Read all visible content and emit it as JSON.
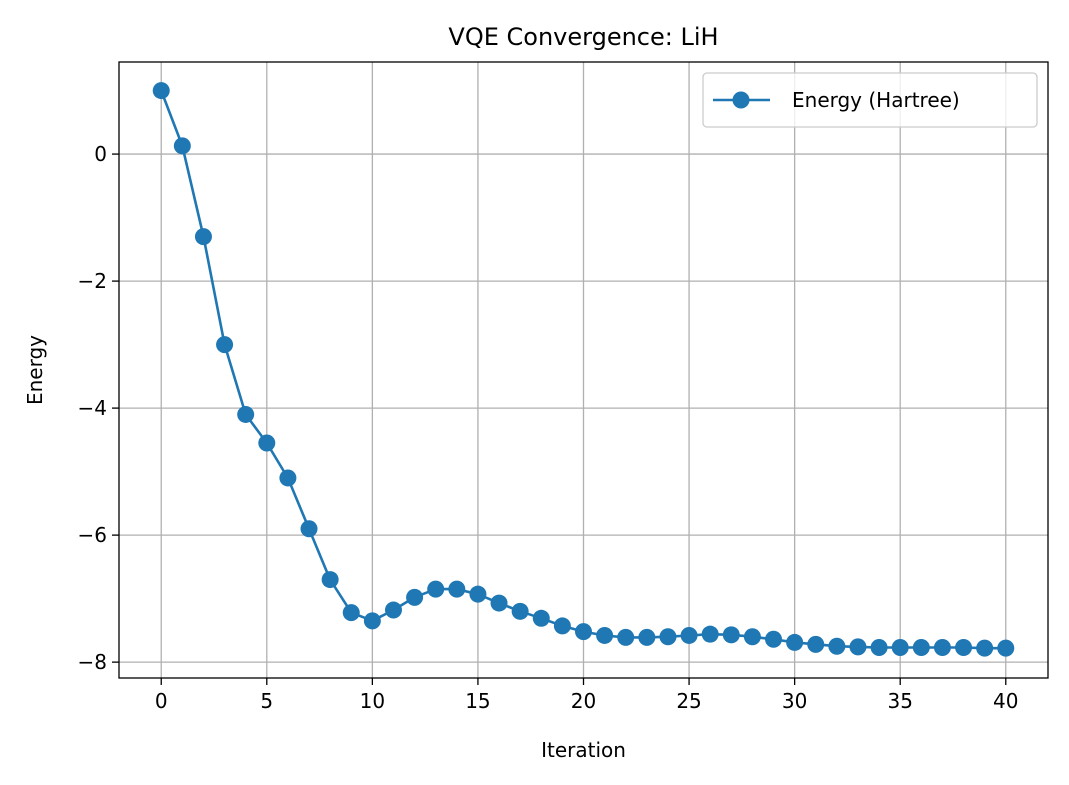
{
  "chart_data": {
    "type": "line",
    "title": "VQE Convergence: LiH",
    "xlabel": "Iteration",
    "ylabel": "Energy",
    "xlim": [
      -2,
      42
    ],
    "ylim": [
      -8.25,
      1.45
    ],
    "xticks": [
      0,
      5,
      10,
      15,
      20,
      25,
      30,
      35,
      40
    ],
    "yticks": [
      -8,
      -6,
      -4,
      -2,
      0
    ],
    "ytick_labels": [
      "−8",
      "−6",
      "−4",
      "−2",
      "0"
    ],
    "grid": true,
    "legend_position": "top-right",
    "series": [
      {
        "name": "Energy (Hartree)",
        "color": "#1f77b4",
        "marker": "circle",
        "x": [
          0,
          1,
          2,
          3,
          4,
          5,
          6,
          7,
          8,
          9,
          10,
          11,
          12,
          13,
          14,
          15,
          16,
          17,
          18,
          19,
          20,
          21,
          22,
          23,
          24,
          25,
          26,
          27,
          28,
          29,
          30,
          31,
          32,
          33,
          34,
          35,
          36,
          37,
          38,
          39,
          40
        ],
        "y": [
          1.0,
          0.13,
          -1.3,
          -3.0,
          -4.1,
          -4.55,
          -5.1,
          -5.9,
          -6.7,
          -7.22,
          -7.35,
          -7.18,
          -6.98,
          -6.85,
          -6.85,
          -6.93,
          -7.07,
          -7.2,
          -7.31,
          -7.43,
          -7.52,
          -7.58,
          -7.61,
          -7.61,
          -7.6,
          -7.58,
          -7.56,
          -7.57,
          -7.6,
          -7.64,
          -7.69,
          -7.72,
          -7.75,
          -7.76,
          -7.77,
          -7.77,
          -7.77,
          -7.77,
          -7.77,
          -7.78,
          -7.78
        ]
      }
    ]
  }
}
